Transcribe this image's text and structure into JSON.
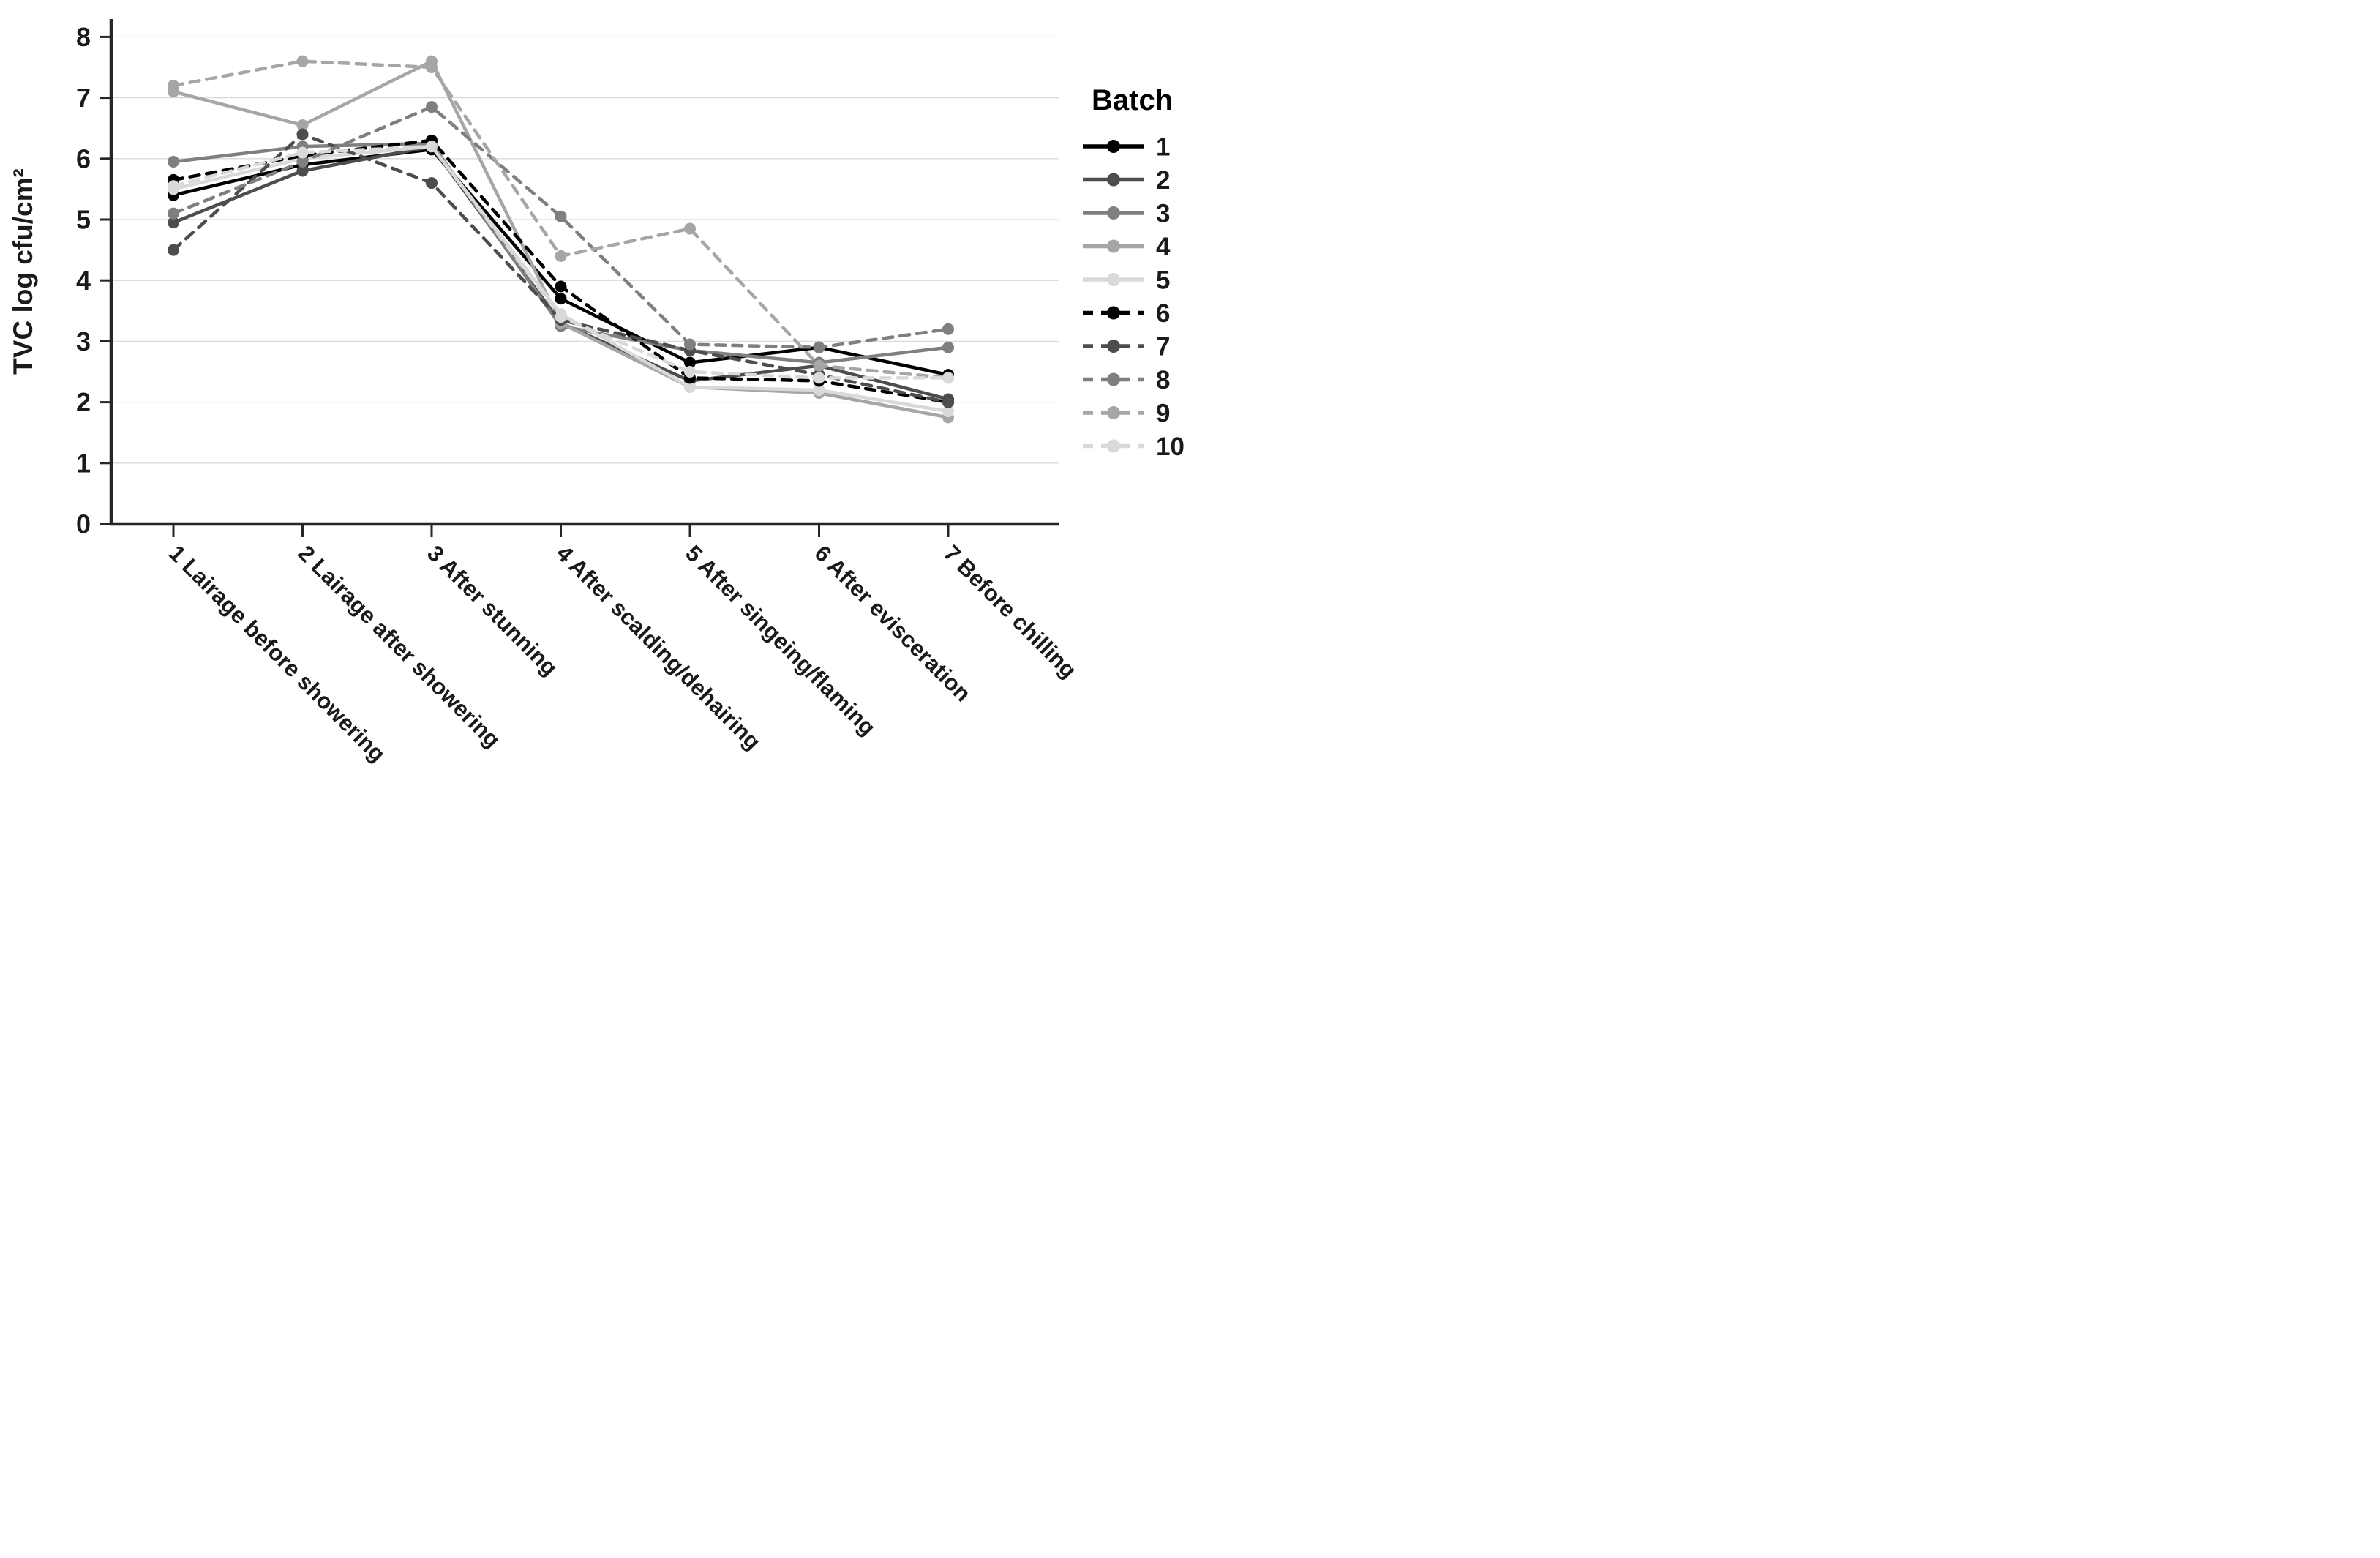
{
  "page": {
    "background": "#ffffff"
  },
  "chart_data": {
    "type": "line",
    "title": "",
    "xlabel": "",
    "ylabel": "TVC log cfu/cm²",
    "legend_title": "Batch",
    "legend_position": "right",
    "grid": "horizontal",
    "ylim": [
      0,
      8
    ],
    "yticks": [
      0,
      1,
      2,
      3,
      4,
      5,
      6,
      7,
      8
    ],
    "axis_color": "#262626",
    "grid_color": "#d9d9d9",
    "text_color": "#1a1a1a",
    "categories": [
      "1 Lairage before showering",
      "2 Lairage after showering",
      "3 After stunning",
      "4 After scalding/dehairing",
      "5 After singeing/flaming",
      "6 After evisceration",
      "7 Before chilling"
    ],
    "series": [
      {
        "name": "1",
        "color": "#000000",
        "style": "solid",
        "values": [
          5.4,
          5.9,
          6.15,
          3.7,
          2.65,
          2.9,
          2.45
        ]
      },
      {
        "name": "2",
        "color": "#4d4d4d",
        "style": "solid",
        "values": [
          4.95,
          5.8,
          6.2,
          3.3,
          2.35,
          2.6,
          2.05
        ]
      },
      {
        "name": "3",
        "color": "#7f7f7f",
        "style": "solid",
        "values": [
          5.95,
          6.2,
          6.25,
          3.25,
          2.85,
          2.65,
          2.9
        ]
      },
      {
        "name": "4",
        "color": "#a6a6a6",
        "style": "solid",
        "values": [
          7.1,
          6.55,
          7.6,
          3.3,
          2.25,
          2.15,
          1.75
        ]
      },
      {
        "name": "5",
        "color": "#d9d9d9",
        "style": "solid",
        "values": [
          5.5,
          6.0,
          6.2,
          3.45,
          2.25,
          2.2,
          1.85
        ]
      },
      {
        "name": "6",
        "color": "#000000",
        "style": "dashed",
        "values": [
          5.65,
          6.05,
          6.3,
          3.9,
          2.4,
          2.35,
          2.0
        ]
      },
      {
        "name": "7",
        "color": "#4d4d4d",
        "style": "dashed",
        "values": [
          4.5,
          6.4,
          5.6,
          3.35,
          2.85,
          2.45,
          2.0
        ]
      },
      {
        "name": "8",
        "color": "#7f7f7f",
        "style": "dashed",
        "values": [
          5.1,
          5.95,
          6.85,
          5.05,
          2.95,
          2.9,
          3.2
        ]
      },
      {
        "name": "9",
        "color": "#a6a6a6",
        "style": "dashed",
        "values": [
          7.2,
          7.6,
          7.5,
          4.4,
          4.85,
          2.6,
          2.4
        ]
      },
      {
        "name": "10",
        "color": "#d9d9d9",
        "style": "dashed",
        "values": [
          5.55,
          6.1,
          6.2,
          3.4,
          2.5,
          2.4,
          2.4
        ]
      }
    ]
  }
}
